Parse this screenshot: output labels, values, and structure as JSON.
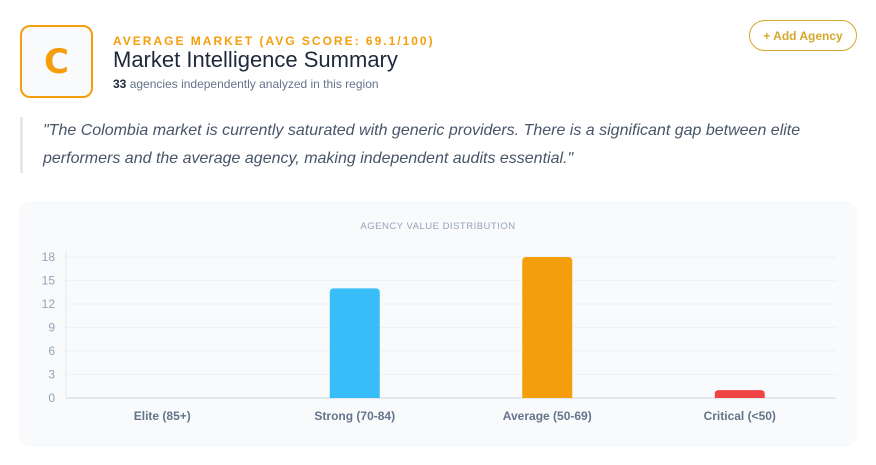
{
  "header": {
    "grade": "C",
    "eyebrow": "AVERAGE MARKET (AVG SCORE: 69.1/100)",
    "title": "Market Intelligence Summary",
    "count": "33",
    "count_suffix": " agencies independently analyzed in this region",
    "add_button": "+ Add Agency"
  },
  "quote": "\"The Colombia market is currently saturated with generic providers. There is a significant gap between elite performers and the average agency, making independent audits essential.\"",
  "colors": {
    "accent": "#f59e0b",
    "button": "#d4a82a"
  },
  "chart_data": {
    "type": "bar",
    "title": "AGENCY VALUE DISTRIBUTION",
    "categories": [
      "Elite (85+)",
      "Strong (70-84)",
      "Average (50-69)",
      "Critical (<50)"
    ],
    "values": [
      0,
      14,
      18,
      1
    ],
    "colors": [
      "#22c55e",
      "#38bdf8",
      "#f59e0b",
      "#ef4444"
    ],
    "ylim": [
      0,
      18
    ],
    "yticks": [
      "0",
      "3",
      "6",
      "9",
      "12",
      "15",
      "18"
    ],
    "grid": true,
    "legend": "none"
  }
}
